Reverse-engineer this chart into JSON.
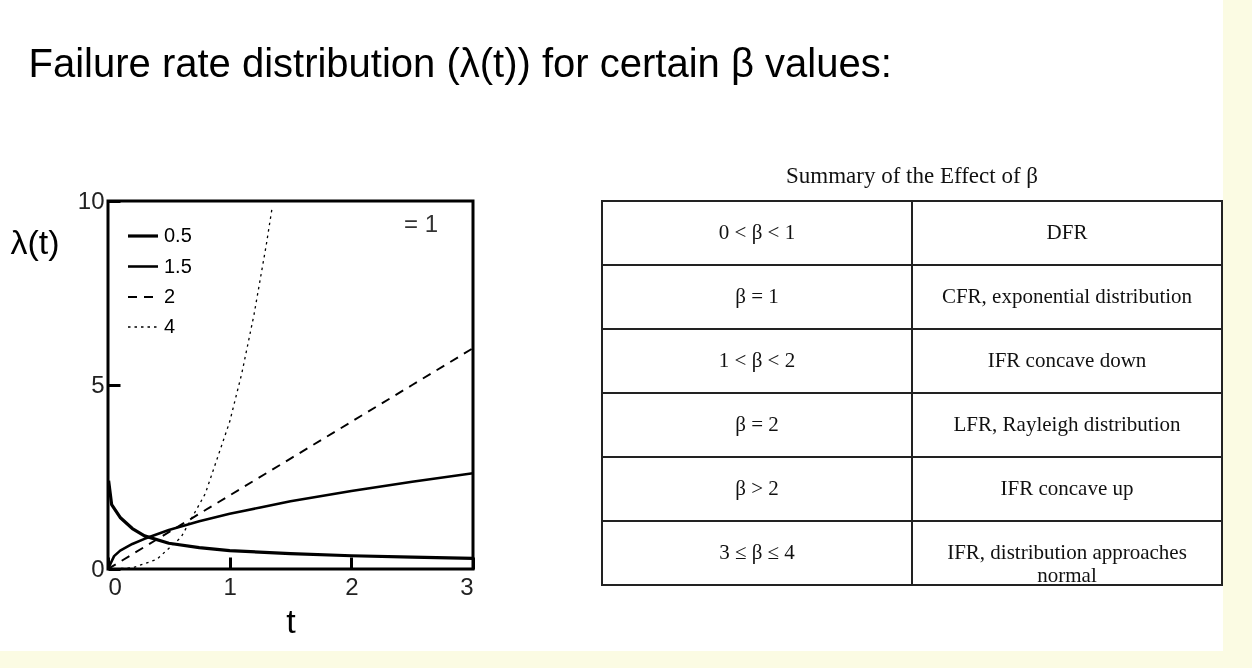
{
  "chart_data": [
    {
      "type": "line",
      "title": "Failure rate distribution (λ(t)) for certain β values:",
      "xlabel": "t",
      "ylabel": "λ(t)",
      "xlim": [
        0,
        3
      ],
      "ylim": [
        0,
        10
      ],
      "xticks": [
        0,
        1,
        2,
        3
      ],
      "yticks": [
        0,
        5,
        10
      ],
      "grid": false,
      "legend": "top left",
      "annotations": [
        "= 1"
      ],
      "series": [
        {
          "name": "0.5",
          "color": "#000000",
          "line_style": "solid",
          "x": [
            0.005,
            0.03,
            0.1,
            0.2,
            0.3,
            0.5,
            0.75,
            1,
            1.5,
            2,
            2.5,
            3
          ],
          "values": [
            2.4,
            1.75,
            1.4,
            1.1,
            0.9,
            0.7,
            0.58,
            0.5,
            0.42,
            0.36,
            0.32,
            0.29
          ]
        },
        {
          "name": "1.5",
          "color": "#000000",
          "line_style": "solid",
          "x": [
            0,
            0.05,
            0.1,
            0.2,
            0.3,
            0.5,
            0.75,
            1,
            1.5,
            2,
            2.5,
            3
          ],
          "values": [
            0,
            0.35,
            0.5,
            0.68,
            0.82,
            1.06,
            1.3,
            1.5,
            1.84,
            2.12,
            2.37,
            2.6
          ]
        },
        {
          "name": "2",
          "color": "#000000",
          "line_style": "dashed",
          "x": [
            0,
            0.5,
            1,
            1.5,
            2,
            2.5,
            3
          ],
          "values": [
            0,
            1,
            2,
            3,
            4,
            5,
            6
          ]
        },
        {
          "name": "4",
          "color": "#000000",
          "line_style": "dotted",
          "x": [
            0,
            0.2,
            0.4,
            0.6,
            0.8,
            1,
            1.1,
            1.2,
            1.3,
            1.35
          ],
          "values": [
            0,
            0.03,
            0.26,
            0.86,
            2.05,
            4,
            5.32,
            6.91,
            8.79,
            9.84
          ]
        }
      ]
    },
    {
      "type": "other",
      "title": "Summary of the Effect of β",
      "annotations": [
        "0 < β < 1",
        "DFR",
        "β = 1",
        "CFR, exponential distribution",
        "1 < β < 2",
        "IFR concave down",
        "β = 2",
        "LFR, Rayleigh distribution",
        "β > 2",
        "IFR concave up",
        "3 ≤ β ≤ 4",
        "IFR, distribution approaches normal"
      ]
    }
  ]
}
